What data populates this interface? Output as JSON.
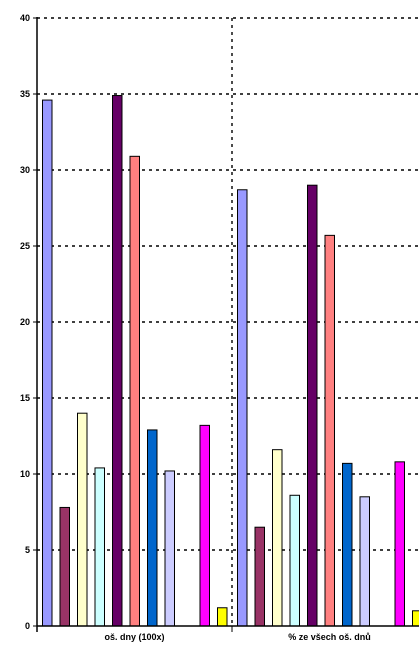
{
  "chart_data": {
    "type": "bar",
    "categories": [
      "oš. dny (100x)",
      "% ze všech oš. dnů"
    ],
    "series": [
      {
        "color": "#9999ff",
        "values": [
          34.6,
          28.7
        ]
      },
      {
        "color": "#993366",
        "values": [
          7.8,
          6.5
        ]
      },
      {
        "color": "#ffffcc",
        "values": [
          14.0,
          11.6
        ]
      },
      {
        "color": "#ccffff",
        "values": [
          10.4,
          8.6
        ]
      },
      {
        "color": "#660066",
        "values": [
          34.9,
          29.0
        ]
      },
      {
        "color": "#ff8080",
        "values": [
          30.9,
          25.7
        ]
      },
      {
        "color": "#0066cc",
        "values": [
          12.9,
          10.7
        ]
      },
      {
        "color": "#ccccff",
        "values": [
          10.2,
          8.5
        ]
      },
      {
        "color": "#000080",
        "values": [
          0,
          0
        ]
      },
      {
        "color": "#ff00ff",
        "values": [
          13.2,
          10.8
        ]
      },
      {
        "color": "#ffff00",
        "values": [
          1.2,
          1.0
        ]
      }
    ],
    "ylim": [
      0,
      40
    ],
    "yticks": [
      "0",
      "5",
      "10",
      "15",
      "20",
      "25",
      "30",
      "35",
      "40"
    ],
    "grid": true,
    "legend": "none"
  }
}
